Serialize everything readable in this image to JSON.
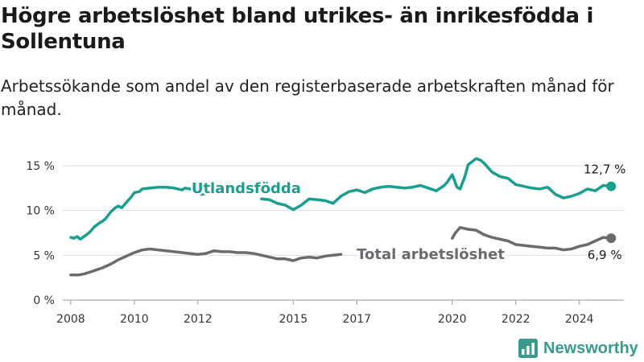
{
  "title": "Högre arbetslöshet bland utrikes- än inrikesfödda i Sollentuna",
  "subtitle": "Arbetssökande som andel av den registerbaserade arbetskraften månad för månad.",
  "brand": {
    "name": "Newsworthy",
    "icon": "bar-chart-logo-icon",
    "color": "#3a9a8e"
  },
  "chart_data": {
    "type": "line",
    "xlim": [
      2007.75,
      2025.4
    ],
    "ylim": [
      0,
      15
    ],
    "x_ticks": [
      "2008",
      "2010",
      "2012",
      "2015",
      "2017",
      "2020",
      "2022",
      "2024"
    ],
    "y_ticks": [
      "0 %",
      "5 %",
      "10 %",
      "15 %"
    ],
    "grid": true,
    "series": [
      {
        "name": "Utlandsfödda",
        "color": "#1a9e8e",
        "end_label": "12,7 %",
        "label_position": "inline",
        "x": [
          2008.0,
          2008.1,
          2008.2,
          2008.3,
          2008.5,
          2008.6,
          2008.75,
          2008.9,
          2009.0,
          2009.1,
          2009.25,
          2009.4,
          2009.5,
          2009.6,
          2009.75,
          2009.9,
          2010.0,
          2010.15,
          2010.25,
          2010.5,
          2010.75,
          2011.0,
          2011.25,
          2011.5,
          2011.6,
          2011.75,
          2012.0,
          2012.1,
          2012.25,
          2012.5,
          2012.75,
          2013.0,
          2013.25,
          2013.5,
          2013.75,
          2014.0,
          2014.25,
          2014.5,
          2014.75,
          2015.0,
          2015.25,
          2015.5,
          2015.75,
          2016.0,
          2016.25,
          2016.5,
          2016.75,
          2017.0,
          2017.25,
          2017.5,
          2017.75,
          2018.0,
          2018.25,
          2018.5,
          2018.75,
          2019.0,
          2019.25,
          2019.5,
          2019.75,
          2019.85,
          2020.0,
          2020.15,
          2020.25,
          2020.4,
          2020.5,
          2020.75,
          2020.9,
          2021.0,
          2021.25,
          2021.5,
          2021.75,
          2022.0,
          2022.25,
          2022.5,
          2022.75,
          2023.0,
          2023.25,
          2023.5,
          2023.75,
          2024.0,
          2024.25,
          2024.5,
          2024.75,
          2025.0
        ],
        "values": [
          7.0,
          6.9,
          7.1,
          6.8,
          7.3,
          7.6,
          8.2,
          8.6,
          8.8,
          9.1,
          9.8,
          10.3,
          10.5,
          10.3,
          10.9,
          11.5,
          12.0,
          12.1,
          12.4,
          12.5,
          12.6,
          12.6,
          12.5,
          12.3,
          12.5,
          12.4,
          12.0,
          11.8,
          11.9,
          null,
          null,
          null,
          null,
          null,
          null,
          11.3,
          11.2,
          10.8,
          10.6,
          10.1,
          10.6,
          11.3,
          11.2,
          11.1,
          10.8,
          11.6,
          12.1,
          12.3,
          12.0,
          12.4,
          12.6,
          12.7,
          12.6,
          12.5,
          12.6,
          12.8,
          12.5,
          12.2,
          12.8,
          13.2,
          14.0,
          12.6,
          12.4,
          13.8,
          15.1,
          15.8,
          15.6,
          15.3,
          14.3,
          13.8,
          13.6,
          12.9,
          12.7,
          12.5,
          12.4,
          12.6,
          11.8,
          11.4,
          11.6,
          11.9,
          12.4,
          12.2,
          12.8,
          12.7
        ]
      },
      {
        "name": "Total arbetslöshet",
        "color": "#6b6a6e",
        "end_label": "6,9 %",
        "label_position": "inline",
        "x": [
          2008.0,
          2008.25,
          2008.4,
          2008.5,
          2008.75,
          2009.0,
          2009.25,
          2009.4,
          2009.5,
          2009.75,
          2010.0,
          2010.25,
          2010.5,
          2010.75,
          2011.0,
          2011.25,
          2011.5,
          2011.75,
          2012.0,
          2012.25,
          2012.5,
          2012.75,
          2013.0,
          2013.25,
          2013.5,
          2013.75,
          2014.0,
          2014.25,
          2014.5,
          2014.75,
          2015.0,
          2015.25,
          2015.5,
          2015.75,
          2016.0,
          2016.25,
          2016.5,
          2016.75,
          2017.0,
          2017.25,
          2017.5,
          2017.75,
          2018.0,
          2018.25,
          2018.5,
          2018.75,
          2019.0,
          2019.25,
          2019.5,
          2019.75,
          2020.0,
          2020.1,
          2020.25,
          2020.5,
          2020.75,
          2021.0,
          2021.25,
          2021.5,
          2021.75,
          2022.0,
          2022.25,
          2022.5,
          2022.75,
          2023.0,
          2023.25,
          2023.5,
          2023.75,
          2024.0,
          2024.25,
          2024.5,
          2024.75,
          2025.0
        ],
        "values": [
          2.8,
          2.8,
          2.9,
          3.0,
          3.3,
          3.6,
          4.0,
          4.3,
          4.5,
          4.9,
          5.3,
          5.6,
          5.7,
          5.6,
          5.5,
          5.4,
          5.3,
          5.2,
          5.1,
          5.2,
          5.5,
          5.4,
          5.4,
          5.3,
          5.3,
          5.2,
          5.0,
          4.8,
          4.6,
          4.6,
          4.4,
          4.7,
          4.8,
          4.7,
          4.9,
          5.0,
          5.1,
          null,
          null,
          null,
          null,
          null,
          null,
          null,
          null,
          null,
          null,
          null,
          null,
          null,
          6.9,
          7.5,
          8.1,
          7.9,
          7.8,
          7.3,
          7.0,
          6.8,
          6.6,
          6.2,
          6.1,
          6.0,
          5.9,
          5.8,
          5.8,
          5.6,
          5.7,
          6.0,
          6.2,
          6.6,
          7.0,
          6.9
        ]
      }
    ]
  }
}
